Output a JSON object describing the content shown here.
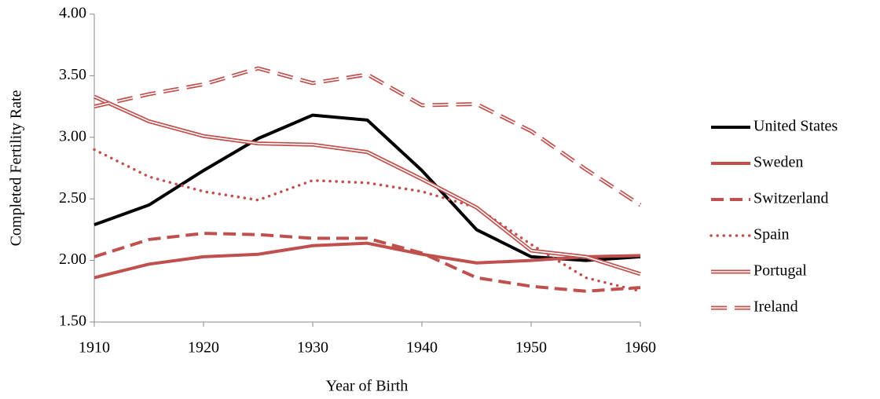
{
  "chart_data": {
    "type": "line",
    "x_label": "Year of Birth",
    "y_label": "Completed Fertility Rate",
    "x": [
      1910,
      1915,
      1920,
      1925,
      1930,
      1935,
      1940,
      1945,
      1950,
      1955,
      1960
    ],
    "xlim": [
      1910,
      1960
    ],
    "xticks": [
      1910,
      1920,
      1930,
      1940,
      1950,
      1960
    ],
    "ylim": [
      1.5,
      4.0
    ],
    "yticks": [
      {
        "value": 1.5,
        "label": "1.50"
      },
      {
        "value": 2.0,
        "label": "2.00"
      },
      {
        "value": 2.5,
        "label": "2.50"
      },
      {
        "value": 3.0,
        "label": "3.00"
      },
      {
        "value": 3.5,
        "label": "3.50"
      },
      {
        "value": 4.0,
        "label": "4.00"
      }
    ],
    "grid": false,
    "legend": "right",
    "series": [
      {
        "name": "United States",
        "color": "#000000",
        "style": "solid-thick",
        "values": [
          2.29,
          2.45,
          2.73,
          2.99,
          3.18,
          3.14,
          2.73,
          2.25,
          2.03,
          2.0,
          2.03
        ]
      },
      {
        "name": "Sweden",
        "color": "#c0504d",
        "style": "solid-thick",
        "values": [
          1.86,
          1.97,
          2.03,
          2.05,
          2.12,
          2.14,
          2.05,
          1.98,
          2.0,
          2.03,
          2.04
        ]
      },
      {
        "name": "Switzerland",
        "color": "#c0504d",
        "style": "dashed-thick",
        "values": [
          2.03,
          2.17,
          2.22,
          2.21,
          2.18,
          2.18,
          2.06,
          1.86,
          1.79,
          1.75,
          1.78
        ]
      },
      {
        "name": "Spain",
        "color": "#c0504d",
        "style": "dotted",
        "values": [
          2.9,
          2.68,
          2.56,
          2.49,
          2.65,
          2.63,
          2.56,
          2.43,
          2.13,
          1.86,
          1.75
        ]
      },
      {
        "name": "Portugal",
        "color": "#c0504d",
        "style": "double",
        "values": [
          3.33,
          3.13,
          3.01,
          2.95,
          2.94,
          2.88,
          2.66,
          2.43,
          2.08,
          2.03,
          1.89
        ]
      },
      {
        "name": "Ireland",
        "color": "#c0504d",
        "style": "double-dashed",
        "values": [
          3.25,
          3.35,
          3.43,
          3.56,
          3.44,
          3.51,
          3.26,
          3.27,
          3.05,
          2.74,
          2.45
        ]
      }
    ]
  }
}
